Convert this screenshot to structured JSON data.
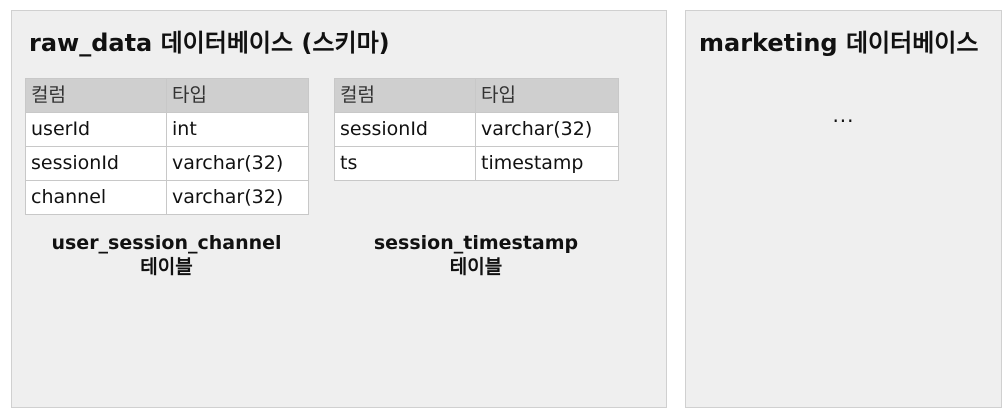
{
  "raw_data_panel": {
    "title": "raw_data 데이터베이스 (스키마)",
    "tables": [
      {
        "headers": [
          "컬럼",
          "타입"
        ],
        "rows": [
          [
            "userId",
            "int"
          ],
          [
            "sessionId",
            "varchar(32)"
          ],
          [
            "channel",
            "varchar(32)"
          ]
        ],
        "caption_name": "user_session_channel",
        "caption_suffix": "테이블"
      },
      {
        "headers": [
          "컬럼",
          "타입"
        ],
        "rows": [
          [
            "sessionId",
            "varchar(32)"
          ],
          [
            "ts",
            "timestamp"
          ]
        ],
        "caption_name": "session_timestamp",
        "caption_suffix": "테이블"
      }
    ]
  },
  "marketing_panel": {
    "title": "marketing 데이터베이스",
    "content": "..."
  }
}
